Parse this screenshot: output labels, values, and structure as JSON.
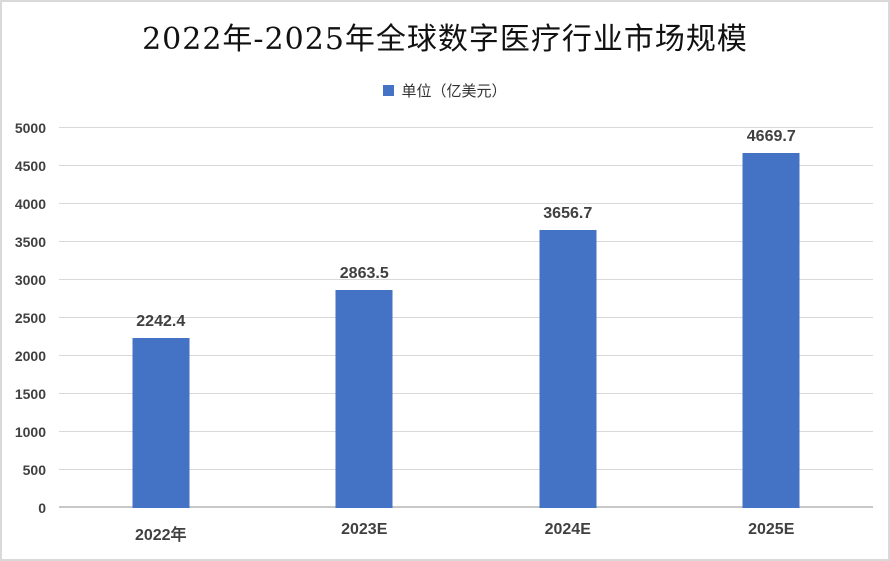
{
  "chart_data": {
    "type": "bar",
    "title": "2022年-2025年全球数字医疗行业市场规模",
    "legend": "单位（亿美元）",
    "categories": [
      "2022年",
      "2023E",
      "2024E",
      "2025E"
    ],
    "values": [
      2242.4,
      2863.5,
      3656.7,
      4669.7
    ],
    "value_labels": [
      "2242.4",
      "2863.5",
      "3656.7",
      "4669.7"
    ],
    "xlabel": "",
    "ylabel": "",
    "ylim": [
      0,
      5000
    ],
    "ytick_step": 500,
    "grid": true,
    "legend_position": "top",
    "colors": {
      "bar": "#4472C4",
      "legend_swatch": "#4472C4",
      "gridline": "#D9D9D9",
      "axis_text": "#404040",
      "title_text": "#111111",
      "frame_border": "#D9D9D9",
      "background": "#FFFFFF"
    }
  }
}
